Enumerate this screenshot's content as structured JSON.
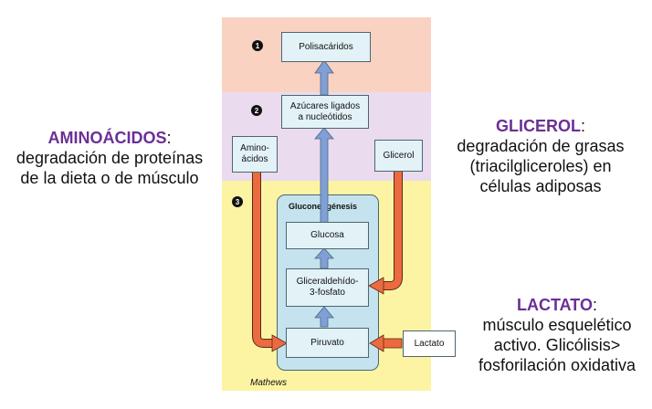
{
  "annotations": {
    "aminoacidos": {
      "heading": "AMINOÁCIDOS",
      "colon": ":",
      "line1": "degradación de proteínas",
      "line2": "de la dieta o de músculo"
    },
    "glicerol": {
      "heading": "GLICEROL",
      "colon": ":",
      "line1": "degradación de grasas",
      "line2": "(triacilgliceroles) en",
      "line3": "células adiposas"
    },
    "lactato": {
      "heading": "LACTATO",
      "colon": ":",
      "line1": "músculo esquelético",
      "line2": "activo. Glicólisis>",
      "line3": "fosforilación oxidativa"
    }
  },
  "diagram": {
    "steps": [
      "1",
      "2",
      "3"
    ],
    "nodes": {
      "polisacaridos": "Polisacáridos",
      "azucares_line1": "Azúcares ligados",
      "azucares_line2": "a nucleótidos",
      "amino_line1": "Amino-",
      "amino_line2": "ácidos",
      "glicerol": "Glicerol",
      "glucosa": "Glucosa",
      "gliceraldehido_line1": "Gliceraldehído-",
      "gliceraldehido_line2": "3-fosfato",
      "piruvato": "Piruvato",
      "lactato": "Lactato"
    },
    "gluconeogenesis_title": "Gluconeogénesis",
    "credit": "Mathews"
  },
  "colors": {
    "band_1": "#f9d2c2",
    "band_2": "#eadbef",
    "band_3": "#fcf4a2",
    "node_fill": "#e2f2f7",
    "gluco_fill": "#c4e3ee",
    "blue_arrow": "#7f9fd6",
    "orange_arrow": "#ec6a3f",
    "heading_purple": "#6b2f95"
  }
}
